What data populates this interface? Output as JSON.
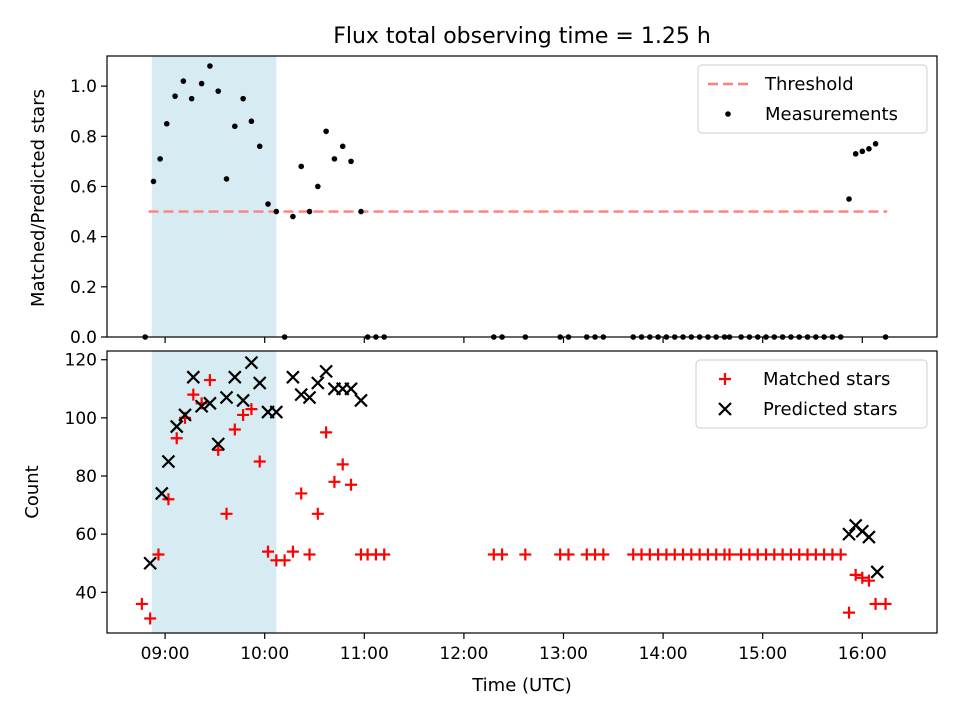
{
  "figure": {
    "title": "Flux total observing time = 1.25 h"
  },
  "chart_data": [
    {
      "type": "scatter",
      "ylabel": "Matched/Predicted stars",
      "ylim": [
        0,
        1.12
      ],
      "yticks": [
        0.0,
        0.2,
        0.4,
        0.6,
        0.8,
        1.0
      ],
      "ytick_labels": [
        "0.0",
        "0.2",
        "0.4",
        "0.6",
        "0.8",
        "1.0"
      ],
      "legend_position": "top-right",
      "shaded_interval": {
        "start": "08:52",
        "end": "10:07"
      },
      "threshold": {
        "name": "Threshold",
        "value": 0.5,
        "x_start": "08:50",
        "x_end": "16:15"
      },
      "series": [
        {
          "name": "Measurements",
          "points": [
            [
              "08:48",
              0.0
            ],
            [
              "08:53",
              0.62
            ],
            [
              "08:57",
              0.71
            ],
            [
              "09:01",
              0.85
            ],
            [
              "09:06",
              0.96
            ],
            [
              "09:11",
              1.02
            ],
            [
              "09:16",
              0.95
            ],
            [
              "09:22",
              1.01
            ],
            [
              "09:27",
              1.08
            ],
            [
              "09:32",
              0.98
            ],
            [
              "09:37",
              0.63
            ],
            [
              "09:42",
              0.84
            ],
            [
              "09:47",
              0.95
            ],
            [
              "09:52",
              0.86
            ],
            [
              "09:57",
              0.76
            ],
            [
              "10:02",
              0.53
            ],
            [
              "10:07",
              0.5
            ],
            [
              "10:12",
              0.0
            ],
            [
              "10:17",
              0.48
            ],
            [
              "10:22",
              0.68
            ],
            [
              "10:27",
              0.5
            ],
            [
              "10:32",
              0.6
            ],
            [
              "10:37",
              0.82
            ],
            [
              "10:42",
              0.71
            ],
            [
              "10:47",
              0.76
            ],
            [
              "10:52",
              0.7
            ],
            [
              "10:58",
              0.5
            ],
            [
              "11:02",
              0.0
            ],
            [
              "11:07",
              0.0
            ],
            [
              "11:12",
              0.0
            ],
            [
              "12:18",
              0.0
            ],
            [
              "12:23",
              0.0
            ],
            [
              "12:37",
              0.0
            ],
            [
              "12:58",
              0.0
            ],
            [
              "13:03",
              0.0
            ],
            [
              "13:14",
              0.0
            ],
            [
              "13:19",
              0.0
            ],
            [
              "13:24",
              0.0
            ],
            [
              "13:42",
              0.0
            ],
            [
              "13:47",
              0.0
            ],
            [
              "13:52",
              0.0
            ],
            [
              "13:57",
              0.0
            ],
            [
              "14:02",
              0.0
            ],
            [
              "14:07",
              0.0
            ],
            [
              "14:12",
              0.0
            ],
            [
              "14:17",
              0.0
            ],
            [
              "14:22",
              0.0
            ],
            [
              "14:27",
              0.0
            ],
            [
              "14:32",
              0.0
            ],
            [
              "14:37",
              0.0
            ],
            [
              "14:40",
              0.0
            ],
            [
              "14:47",
              0.0
            ],
            [
              "14:52",
              0.0
            ],
            [
              "14:57",
              0.0
            ],
            [
              "15:02",
              0.0
            ],
            [
              "15:07",
              0.0
            ],
            [
              "15:12",
              0.0
            ],
            [
              "15:17",
              0.0
            ],
            [
              "15:22",
              0.0
            ],
            [
              "15:27",
              0.0
            ],
            [
              "15:32",
              0.0
            ],
            [
              "15:37",
              0.0
            ],
            [
              "15:42",
              0.0
            ],
            [
              "15:47",
              0.0
            ],
            [
              "15:52",
              0.55
            ],
            [
              "15:56",
              0.73
            ],
            [
              "16:00",
              0.74
            ],
            [
              "16:04",
              0.75
            ],
            [
              "16:08",
              0.77
            ],
            [
              "16:14",
              0.0
            ]
          ]
        }
      ]
    },
    {
      "type": "scatter",
      "xlabel": "Time (UTC)",
      "ylabel": "Count",
      "ylim": [
        26,
        123
      ],
      "yticks": [
        40,
        60,
        80,
        100,
        120
      ],
      "ytick_labels": [
        "40",
        "60",
        "80",
        "100",
        "120"
      ],
      "xlim": [
        "08:25",
        "16:45"
      ],
      "xticks": [
        "09:00",
        "10:00",
        "11:00",
        "12:00",
        "13:00",
        "14:00",
        "15:00",
        "16:00"
      ],
      "xtick_labels": [
        "09:00",
        "10:00",
        "11:00",
        "12:00",
        "13:00",
        "14:00",
        "15:00",
        "16:00"
      ],
      "legend_position": "top-right",
      "shaded_interval": {
        "start": "08:52",
        "end": "10:07"
      },
      "series": [
        {
          "name": "Matched stars",
          "marker": "plus",
          "color": "#ff0000",
          "points": [
            [
              "08:46",
              36
            ],
            [
              "08:51",
              31
            ],
            [
              "08:56",
              53
            ],
            [
              "09:02",
              72
            ],
            [
              "09:07",
              93
            ],
            [
              "09:12",
              100
            ],
            [
              "09:17",
              108
            ],
            [
              "09:22",
              105
            ],
            [
              "09:27",
              113
            ],
            [
              "09:32",
              89
            ],
            [
              "09:37",
              67
            ],
            [
              "09:42",
              96
            ],
            [
              "09:47",
              101
            ],
            [
              "09:52",
              103
            ],
            [
              "09:57",
              85
            ],
            [
              "10:02",
              54
            ],
            [
              "10:07",
              51
            ],
            [
              "10:12",
              51
            ],
            [
              "10:17",
              54
            ],
            [
              "10:22",
              74
            ],
            [
              "10:27",
              53
            ],
            [
              "10:32",
              67
            ],
            [
              "10:37",
              95
            ],
            [
              "10:42",
              78
            ],
            [
              "10:47",
              84
            ],
            [
              "10:52",
              77
            ],
            [
              "10:58",
              53
            ],
            [
              "11:02",
              53
            ],
            [
              "11:07",
              53
            ],
            [
              "11:12",
              53
            ],
            [
              "12:18",
              53
            ],
            [
              "12:23",
              53
            ],
            [
              "12:37",
              53
            ],
            [
              "12:58",
              53
            ],
            [
              "13:03",
              53
            ],
            [
              "13:14",
              53
            ],
            [
              "13:19",
              53
            ],
            [
              "13:24",
              53
            ],
            [
              "13:42",
              53
            ],
            [
              "13:47",
              53
            ],
            [
              "13:52",
              53
            ],
            [
              "13:57",
              53
            ],
            [
              "14:02",
              53
            ],
            [
              "14:07",
              53
            ],
            [
              "14:12",
              53
            ],
            [
              "14:17",
              53
            ],
            [
              "14:22",
              53
            ],
            [
              "14:27",
              53
            ],
            [
              "14:32",
              53
            ],
            [
              "14:37",
              53
            ],
            [
              "14:40",
              53
            ],
            [
              "14:47",
              53
            ],
            [
              "14:52",
              53
            ],
            [
              "14:57",
              53
            ],
            [
              "15:02",
              53
            ],
            [
              "15:07",
              53
            ],
            [
              "15:12",
              53
            ],
            [
              "15:17",
              53
            ],
            [
              "15:22",
              53
            ],
            [
              "15:27",
              53
            ],
            [
              "15:32",
              53
            ],
            [
              "15:37",
              53
            ],
            [
              "15:42",
              53
            ],
            [
              "15:47",
              53
            ],
            [
              "15:52",
              33
            ],
            [
              "15:56",
              46
            ],
            [
              "16:00",
              45
            ],
            [
              "16:04",
              44
            ],
            [
              "16:08",
              36
            ],
            [
              "16:14",
              36
            ]
          ]
        },
        {
          "name": "Predicted stars",
          "marker": "x",
          "color": "#000000",
          "points": [
            [
              "08:51",
              50
            ],
            [
              "08:58",
              74
            ],
            [
              "09:02",
              85
            ],
            [
              "09:07",
              97
            ],
            [
              "09:12",
              101
            ],
            [
              "09:17",
              114
            ],
            [
              "09:22",
              104
            ],
            [
              "09:27",
              105
            ],
            [
              "09:32",
              91
            ],
            [
              "09:37",
              107
            ],
            [
              "09:42",
              114
            ],
            [
              "09:47",
              106
            ],
            [
              "09:52",
              119
            ],
            [
              "09:57",
              112
            ],
            [
              "10:02",
              102
            ],
            [
              "10:07",
              102
            ],
            [
              "10:17",
              114
            ],
            [
              "10:22",
              108
            ],
            [
              "10:27",
              107
            ],
            [
              "10:32",
              112
            ],
            [
              "10:37",
              116
            ],
            [
              "10:42",
              110
            ],
            [
              "10:47",
              110
            ],
            [
              "10:52",
              110
            ],
            [
              "10:58",
              106
            ],
            [
              "15:52",
              60
            ],
            [
              "15:56",
              63
            ],
            [
              "16:00",
              61
            ],
            [
              "16:04",
              59
            ],
            [
              "16:09",
              47
            ]
          ]
        }
      ]
    }
  ]
}
